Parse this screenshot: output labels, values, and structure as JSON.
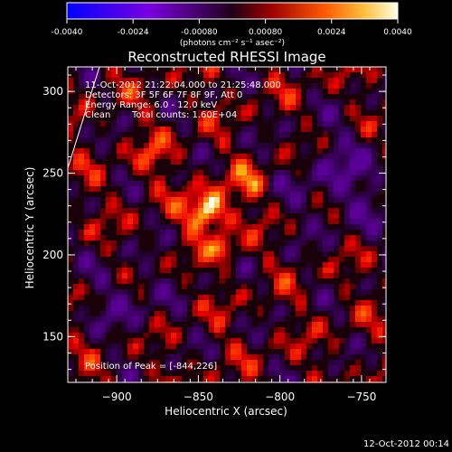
{
  "title": "Reconstructed RHESSI Image",
  "xlabel": "Heliocentric X (arcsec)",
  "ylabel": "Heliocentric Y (arcsec)",
  "info": {
    "time_range": "11-Oct-2012 21:22:04.000 to 21:25:48.000",
    "detectors": "Detectors: 3F 5F 6F 7F 8F 9F, Att 0",
    "energy": "Energy Range: 6.0 - 12.0 keV",
    "clean": "Clean",
    "counts": "Total counts: 1.60E+04",
    "peak": "Position of Peak = [-844,226]"
  },
  "colorbar": {
    "ticks": [
      "-0.0040",
      "-0.0024",
      "-0.00080",
      "0.00080",
      "0.0024",
      "0.0040"
    ],
    "unit": "(photons cm⁻² s⁻¹ asec⁻²)",
    "range": [
      -0.004,
      0.004
    ],
    "colors": [
      "#0000ff",
      "#8000ff",
      "#ff0000",
      "#ff8000",
      "#ffffff"
    ]
  },
  "x_ticks": [
    "-900",
    "-850",
    "-800",
    "-750"
  ],
  "y_ticks": [
    "150",
    "200",
    "250",
    "300"
  ],
  "peak_x": -844,
  "peak_y": 226,
  "x_range": [
    -930,
    -735
  ],
  "y_range": [
    122,
    315
  ],
  "date_stamp": "12-Oct-2012 00:14"
}
